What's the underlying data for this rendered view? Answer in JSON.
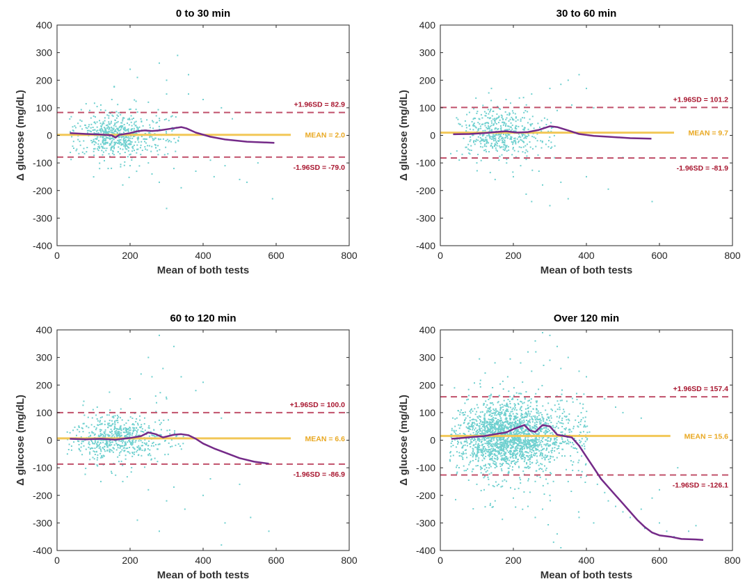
{
  "figure": {
    "colors": {
      "points": "#6fd0cf",
      "mean_line": "#f2c757",
      "limit_lines": "#c0506a",
      "limit_text": "#a8162f",
      "mean_text": "#e9a822",
      "trend": "#742a88"
    }
  },
  "chart_data": [
    {
      "type": "scatter",
      "title": "0 to 30 min",
      "xlabel": "Mean of both tests",
      "ylabel": "Δ glucose (mg/dL)",
      "xlim": [
        0,
        800
      ],
      "ylim": [
        -400,
        400
      ],
      "xticks": [
        "0",
        "200",
        "400",
        "600",
        "800"
      ],
      "yticks": [
        "-400",
        "-300",
        "-200",
        "-100",
        "0",
        "100",
        "200",
        "300",
        "400"
      ],
      "mean": 2.0,
      "upper_loa": 82.9,
      "lower_loa": -79.0,
      "mean_label": "MEAN = 2.0",
      "upper_label": "+1.96SD = 82.9",
      "lower_label": "-1.96SD = -79.0",
      "reference_x_range": [
        0,
        640
      ],
      "trend": [
        [
          35,
          8
        ],
        [
          80,
          5
        ],
        [
          120,
          3
        ],
        [
          150,
          0
        ],
        [
          160,
          -8
        ],
        [
          170,
          2
        ],
        [
          200,
          8
        ],
        [
          220,
          15
        ],
        [
          240,
          18
        ],
        [
          260,
          16
        ],
        [
          280,
          18
        ],
        [
          300,
          22
        ],
        [
          320,
          26
        ],
        [
          340,
          30
        ],
        [
          355,
          25
        ],
        [
          380,
          10
        ],
        [
          420,
          -5
        ],
        [
          460,
          -15
        ],
        [
          520,
          -23
        ],
        [
          595,
          -27
        ]
      ],
      "scatter_cluster": {
        "x_center": 160,
        "x_spread": 55,
        "y_spread": 38,
        "count": 650
      },
      "scatter_outliers": [
        [
          280,
          262
        ],
        [
          330,
          290
        ],
        [
          360,
          220
        ],
        [
          220,
          210
        ],
        [
          300,
          200
        ],
        [
          150,
          130
        ],
        [
          250,
          120
        ],
        [
          400,
          130
        ],
        [
          450,
          100
        ],
        [
          590,
          -230
        ],
        [
          300,
          -265
        ],
        [
          180,
          -180
        ],
        [
          280,
          -170
        ],
        [
          340,
          -190
        ],
        [
          460,
          -110
        ],
        [
          500,
          -160
        ],
        [
          520,
          -170
        ],
        [
          380,
          -130
        ],
        [
          200,
          -110
        ],
        [
          250,
          -100
        ],
        [
          320,
          -120
        ],
        [
          420,
          -90
        ],
        [
          360,
          150
        ],
        [
          140,
          -120
        ],
        [
          120,
          110
        ],
        [
          480,
          60
        ],
        [
          300,
          150
        ],
        [
          260,
          -140
        ],
        [
          430,
          -150
        ],
        [
          550,
          -100
        ]
      ]
    },
    {
      "type": "scatter",
      "title": "30 to 60 min",
      "xlabel": "Mean of both tests",
      "ylabel": "Δ glucose (mg/dL)",
      "xlim": [
        0,
        800
      ],
      "ylim": [
        -400,
        400
      ],
      "xticks": [
        "0",
        "200",
        "400",
        "600",
        "800"
      ],
      "yticks": [
        "-400",
        "-300",
        "-200",
        "-100",
        "0",
        "100",
        "200",
        "300",
        "400"
      ],
      "mean": 9.7,
      "upper_loa": 101.2,
      "lower_loa": -81.9,
      "mean_label": "MEAN = 9.7",
      "upper_label": "+1.96SD = 101.2",
      "lower_label": "-1.96SD = -81.9",
      "reference_x_range": [
        0,
        640
      ],
      "trend": [
        [
          35,
          4
        ],
        [
          80,
          5
        ],
        [
          120,
          8
        ],
        [
          150,
          12
        ],
        [
          180,
          15
        ],
        [
          210,
          10
        ],
        [
          240,
          12
        ],
        [
          270,
          20
        ],
        [
          300,
          33
        ],
        [
          320,
          30
        ],
        [
          350,
          18
        ],
        [
          380,
          5
        ],
        [
          420,
          -2
        ],
        [
          460,
          -5
        ],
        [
          520,
          -10
        ],
        [
          578,
          -12
        ]
      ],
      "scatter_cluster": {
        "x_center": 155,
        "x_spread": 50,
        "y_spread": 40,
        "count": 520
      },
      "scatter_outliers": [
        [
          380,
          220
        ],
        [
          350,
          200
        ],
        [
          330,
          185
        ],
        [
          300,
          170
        ],
        [
          400,
          170
        ],
        [
          250,
          150
        ],
        [
          140,
          170
        ],
        [
          180,
          130
        ],
        [
          420,
          100
        ],
        [
          580,
          -240
        ],
        [
          300,
          -255
        ],
        [
          250,
          -240
        ],
        [
          350,
          -230
        ],
        [
          460,
          -195
        ],
        [
          400,
          -150
        ],
        [
          200,
          -150
        ],
        [
          150,
          -160
        ],
        [
          270,
          -130
        ],
        [
          500,
          -80
        ],
        [
          330,
          -170
        ],
        [
          100,
          -100
        ],
        [
          220,
          -110
        ],
        [
          360,
          110
        ],
        [
          320,
          90
        ],
        [
          280,
          -180
        ]
      ]
    },
    {
      "type": "scatter",
      "title": "60 to 120 min",
      "xlabel": "Mean of both tests",
      "ylabel": "Δ glucose (mg/dL)",
      "xlim": [
        0,
        800
      ],
      "ylim": [
        -400,
        400
      ],
      "xticks": [
        "0",
        "200",
        "400",
        "600",
        "800"
      ],
      "yticks": [
        "-400",
        "-300",
        "-200",
        "-100",
        "0",
        "100",
        "200",
        "300",
        "400"
      ],
      "mean": 6.6,
      "upper_loa": 100.0,
      "lower_loa": -86.9,
      "mean_label": "MEAN = 6.6",
      "upper_label": "+1.96SD = 100.0",
      "lower_label": "-1.96SD = -86.9",
      "reference_x_range": [
        0,
        640
      ],
      "trend": [
        [
          35,
          5
        ],
        [
          80,
          3
        ],
        [
          120,
          5
        ],
        [
          160,
          2
        ],
        [
          200,
          8
        ],
        [
          230,
          15
        ],
        [
          250,
          28
        ],
        [
          270,
          22
        ],
        [
          290,
          10
        ],
        [
          320,
          20
        ],
        [
          340,
          22
        ],
        [
          360,
          18
        ],
        [
          380,
          5
        ],
        [
          400,
          -12
        ],
        [
          430,
          -30
        ],
        [
          460,
          -45
        ],
        [
          500,
          -65
        ],
        [
          540,
          -78
        ],
        [
          580,
          -85
        ]
      ],
      "scatter_cluster": {
        "x_center": 160,
        "x_spread": 60,
        "y_spread": 38,
        "count": 620
      },
      "scatter_outliers": [
        [
          280,
          380
        ],
        [
          320,
          340
        ],
        [
          250,
          300
        ],
        [
          290,
          260
        ],
        [
          230,
          240
        ],
        [
          260,
          230
        ],
        [
          340,
          230
        ],
        [
          400,
          210
        ],
        [
          380,
          180
        ],
        [
          270,
          160
        ],
        [
          300,
          150
        ],
        [
          200,
          150
        ],
        [
          110,
          120
        ],
        [
          450,
          80
        ],
        [
          580,
          -330
        ],
        [
          450,
          -380
        ],
        [
          460,
          -300
        ],
        [
          280,
          -330
        ],
        [
          220,
          -290
        ],
        [
          350,
          -250
        ],
        [
          300,
          -220
        ],
        [
          400,
          -200
        ],
        [
          250,
          -180
        ],
        [
          180,
          -150
        ],
        [
          120,
          -150
        ],
        [
          500,
          -160
        ],
        [
          530,
          -280
        ],
        [
          320,
          -170
        ],
        [
          150,
          -120
        ],
        [
          420,
          -140
        ]
      ]
    },
    {
      "type": "scatter",
      "title": "Over 120 min",
      "xlabel": "Mean of both tests",
      "ylabel": "Δ glucose (mg/dL)",
      "xlim": [
        0,
        800
      ],
      "ylim": [
        -400,
        400
      ],
      "xticks": [
        "0",
        "200",
        "400",
        "600",
        "800"
      ],
      "yticks": [
        "-400",
        "-300",
        "-200",
        "-100",
        "0",
        "100",
        "200",
        "300",
        "400"
      ],
      "mean": 15.6,
      "upper_loa": 157.4,
      "lower_loa": -126.1,
      "mean_label": "MEAN = 15.6",
      "upper_label": "+1.96SD = 157.4",
      "lower_label": "-1.96SD = -126.1",
      "reference_x_range": [
        0,
        630
      ],
      "trend": [
        [
          30,
          5
        ],
        [
          60,
          8
        ],
        [
          90,
          12
        ],
        [
          120,
          15
        ],
        [
          150,
          22
        ],
        [
          180,
          28
        ],
        [
          200,
          40
        ],
        [
          220,
          50
        ],
        [
          230,
          55
        ],
        [
          245,
          35
        ],
        [
          260,
          30
        ],
        [
          280,
          55
        ],
        [
          300,
          50
        ],
        [
          320,
          20
        ],
        [
          340,
          15
        ],
        [
          360,
          10
        ],
        [
          380,
          -20
        ],
        [
          400,
          -60
        ],
        [
          420,
          -100
        ],
        [
          440,
          -140
        ],
        [
          460,
          -170
        ],
        [
          480,
          -200
        ],
        [
          500,
          -230
        ],
        [
          520,
          -260
        ],
        [
          540,
          -290
        ],
        [
          560,
          -315
        ],
        [
          580,
          -335
        ],
        [
          600,
          -345
        ],
        [
          630,
          -350
        ],
        [
          660,
          -358
        ],
        [
          700,
          -360
        ],
        [
          720,
          -362
        ]
      ],
      "scatter_cluster": {
        "x_center": 180,
        "x_spread": 70,
        "y_spread": 60,
        "count": 2200
      },
      "scatter_outliers": [
        [
          280,
          390
        ],
        [
          300,
          380
        ],
        [
          260,
          360
        ],
        [
          320,
          340
        ],
        [
          240,
          320
        ],
        [
          350,
          300
        ],
        [
          300,
          290
        ],
        [
          220,
          280
        ],
        [
          380,
          250
        ],
        [
          400,
          230
        ],
        [
          250,
          250
        ],
        [
          330,
          260
        ],
        [
          450,
          150
        ],
        [
          480,
          120
        ],
        [
          500,
          100
        ],
        [
          550,
          80
        ],
        [
          600,
          -300
        ],
        [
          620,
          -330
        ],
        [
          640,
          -350
        ],
        [
          560,
          -320
        ],
        [
          520,
          -280
        ],
        [
          500,
          -260
        ],
        [
          480,
          -240
        ],
        [
          460,
          -220
        ],
        [
          450,
          -190
        ],
        [
          430,
          -160
        ],
        [
          400,
          -130
        ],
        [
          350,
          -150
        ],
        [
          300,
          -200
        ],
        [
          280,
          -250
        ],
        [
          260,
          -280
        ],
        [
          240,
          -240
        ],
        [
          200,
          -210
        ],
        [
          150,
          -220
        ],
        [
          120,
          -180
        ],
        [
          100,
          -160
        ],
        [
          320,
          -340
        ],
        [
          310,
          -370
        ],
        [
          330,
          -390
        ],
        [
          380,
          -280
        ],
        [
          420,
          -300
        ],
        [
          550,
          -250
        ],
        [
          580,
          -210
        ],
        [
          600,
          -180
        ],
        [
          650,
          -100
        ],
        [
          680,
          -330
        ],
        [
          700,
          -310
        ]
      ]
    }
  ]
}
